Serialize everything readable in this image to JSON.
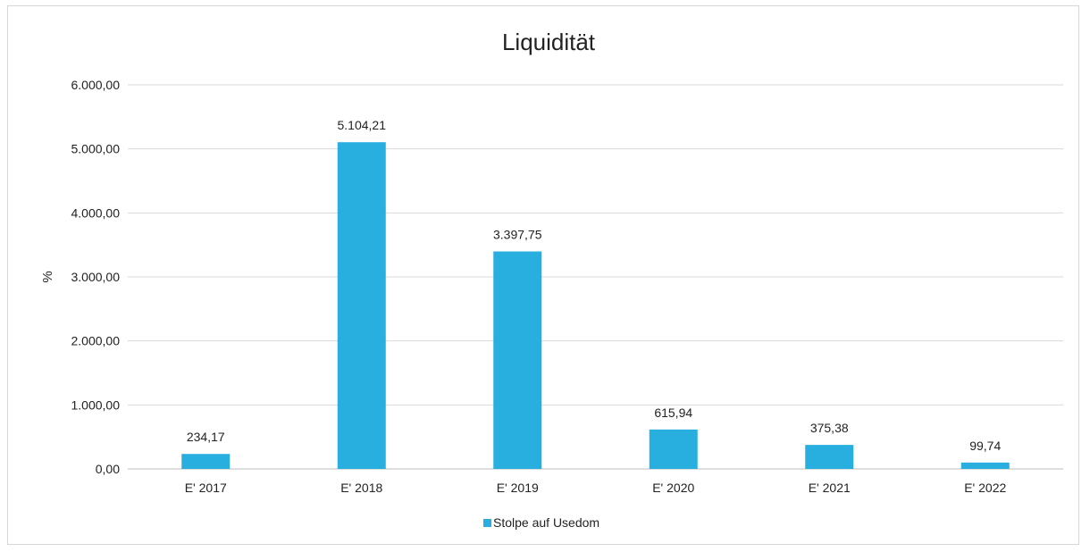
{
  "chart_data": {
    "type": "bar",
    "title": "Liquidität",
    "xlabel": "",
    "ylabel": "%",
    "categories": [
      "E' 2017",
      "E' 2018",
      "E' 2019",
      "E' 2020",
      "E' 2021",
      "E' 2022"
    ],
    "series": [
      {
        "name": "Stolpe auf Usedom",
        "values": [
          234.17,
          5104.21,
          3397.75,
          615.94,
          375.38,
          99.74
        ],
        "labels": [
          "234,17",
          "5.104,21",
          "3.397,75",
          "615,94",
          "375,38",
          "99,74"
        ],
        "color": "#29aee0"
      }
    ],
    "ylim": [
      0,
      6000
    ],
    "yticks": [
      0,
      1000,
      2000,
      3000,
      4000,
      5000,
      6000
    ],
    "ytick_labels": [
      "0,00",
      "1.000,00",
      "2.000,00",
      "3.000,00",
      "4.000,00",
      "5.000,00",
      "6.000,00"
    ],
    "grid": true,
    "legend_position": "bottom"
  }
}
